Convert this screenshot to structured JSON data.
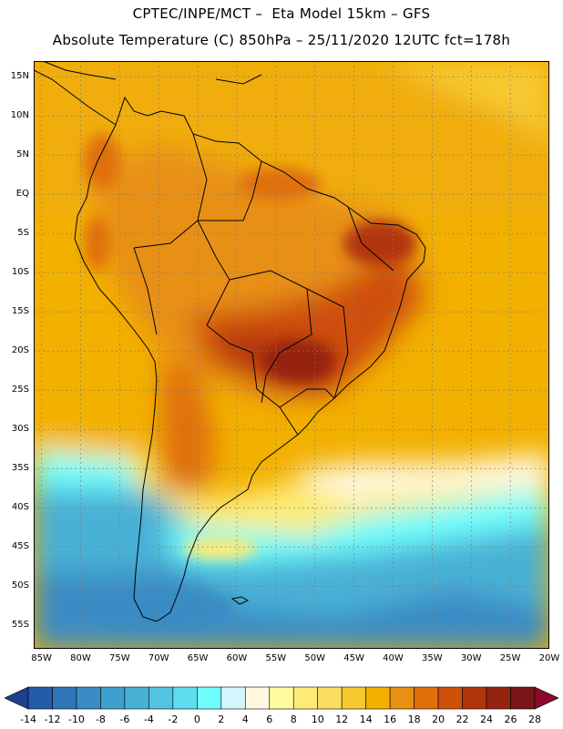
{
  "header": {
    "line1": "CPTEC/INPE/MCT –  Eta Model 15km – GFS",
    "line2": "Absolute Temperature (C) 850hPa – 25/11/2020 12UTC fct=178h"
  },
  "map": {
    "lat_ticks": [
      "15N",
      "10N",
      "5N",
      "EQ",
      "5S",
      "10S",
      "15S",
      "20S",
      "25S",
      "30S",
      "35S",
      "40S",
      "45S",
      "50S",
      "55S"
    ],
    "lat_values": [
      15,
      10,
      5,
      0,
      -5,
      -10,
      -15,
      -20,
      -25,
      -30,
      -35,
      -40,
      -45,
      -50,
      -55
    ],
    "lon_ticks": [
      "85W",
      "80W",
      "75W",
      "70W",
      "65W",
      "60W",
      "55W",
      "50W",
      "45W",
      "40W",
      "35W",
      "30W",
      "25W",
      "20W"
    ],
    "lon_values": [
      -85,
      -80,
      -75,
      -70,
      -65,
      -60,
      -55,
      -50,
      -45,
      -40,
      -35,
      -30,
      -25,
      -20
    ],
    "lon_range": [
      -86,
      -20
    ],
    "lat_range": [
      17,
      -58
    ],
    "grid": true
  },
  "colorbar": {
    "levels": [
      "-14",
      "-12",
      "-10",
      "-8",
      "-6",
      "-4",
      "-2",
      "0",
      "2",
      "4",
      "6",
      "8",
      "10",
      "12",
      "14",
      "16",
      "18",
      "20",
      "22",
      "24",
      "26",
      "28"
    ],
    "colors": [
      "#1f3f8f",
      "#245ca8",
      "#2e76b8",
      "#3b8cc4",
      "#3f9fcd",
      "#48b1d6",
      "#52c4e2",
      "#5fdcef",
      "#6ffcfc",
      "#d2f6fb",
      "#fff8e1",
      "#fffc9f",
      "#fdeb78",
      "#fade60",
      "#f7c930",
      "#f2b000",
      "#e89014",
      "#df6f0b",
      "#cf500a",
      "#b23509",
      "#942410",
      "#7a1518",
      "#8b0a2c"
    ]
  }
}
